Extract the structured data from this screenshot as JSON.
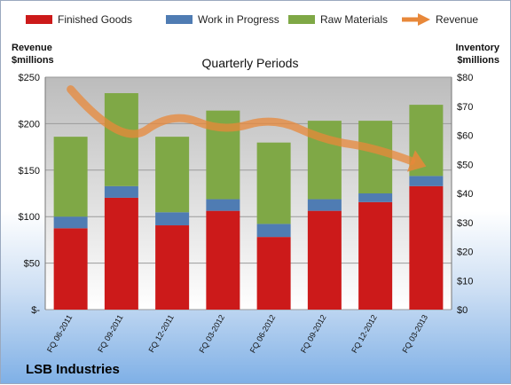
{
  "chart_data": {
    "type": "bar",
    "stacked": true,
    "title": "Quarterly Periods",
    "company": "LSB Industries",
    "y_left_label_line1": "Revenue",
    "y_left_label_line2": "$millions",
    "y_right_label_line1": "Inventory",
    "y_right_label_line2": "$millions",
    "categories": [
      "FQ 06-2011",
      "FQ 09-2011",
      "FQ 12-2011",
      "FQ 03-2012",
      "FQ 06-2012",
      "FQ 09-2012",
      "FQ 12-2012",
      "FQ 03-2013"
    ],
    "ylim_left": [
      0,
      250
    ],
    "ylim_right": [
      0,
      80
    ],
    "left_ticks": [
      "$-",
      "$50",
      "$100",
      "$150",
      "$200",
      "$250"
    ],
    "right_ticks": [
      "$0",
      "$10",
      "$20",
      "$30",
      "$40",
      "$50",
      "$60",
      "$70",
      "$80"
    ],
    "legend_position": "top",
    "grid": true,
    "series": [
      {
        "name": "Finished Goods",
        "axis": "right",
        "kind": "bar",
        "color": "#cc1a1a",
        "values": [
          28,
          38.5,
          29,
          34,
          25,
          34,
          37,
          42.5
        ]
      },
      {
        "name": "Work in Progress",
        "axis": "right",
        "kind": "bar",
        "color": "#4f7cb3",
        "values": [
          4,
          4,
          4.5,
          4,
          4.5,
          4,
          3,
          3.5
        ]
      },
      {
        "name": "Raw Materials",
        "axis": "right",
        "kind": "bar",
        "color": "#7fa846",
        "values": [
          27.5,
          32,
          26,
          30.5,
          28,
          27,
          25,
          24.5
        ]
      },
      {
        "name": "Revenue",
        "axis": "left",
        "kind": "arrow-line",
        "color": "#e8883a",
        "values": [
          237,
          174,
          213,
          191,
          207,
          182,
          174,
          154
        ]
      }
    ]
  }
}
